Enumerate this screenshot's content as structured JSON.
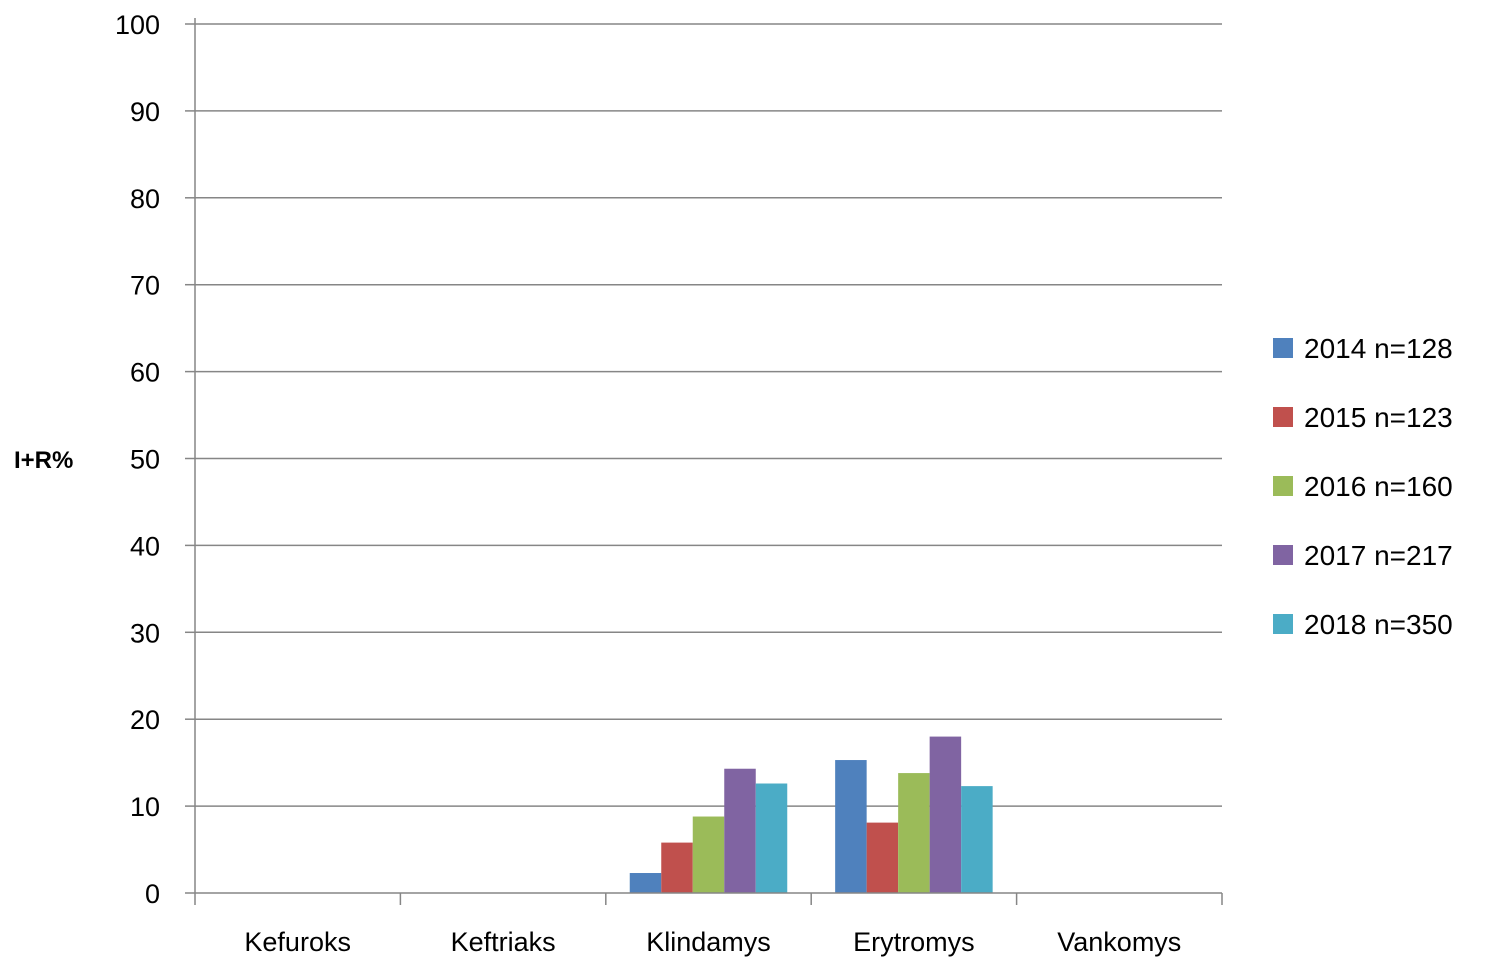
{
  "chart_data": {
    "type": "bar",
    "title": "",
    "xlabel": "",
    "ylabel": "I+R%",
    "ylim": [
      0,
      100
    ],
    "yticks": [
      0,
      10,
      20,
      30,
      40,
      50,
      60,
      70,
      80,
      90,
      100
    ],
    "grid": true,
    "legend_position": "right",
    "categories": [
      "Kefuroks",
      "Keftriaks",
      "Klindamys",
      "Erytromys",
      "Vankomys"
    ],
    "series": [
      {
        "name": "2014 n=128",
        "color": "#4F81BD",
        "values": [
          0,
          0,
          2.3,
          15.3,
          0
        ]
      },
      {
        "name": "2015 n=123",
        "color": "#C0504D",
        "values": [
          0,
          0,
          5.8,
          8.1,
          0
        ]
      },
      {
        "name": "2016 n=160",
        "color": "#9BBB59",
        "values": [
          0,
          0,
          8.8,
          13.8,
          0
        ]
      },
      {
        "name": "2017 n=217",
        "color": "#8064A2",
        "values": [
          0,
          0,
          14.3,
          18.0,
          0
        ]
      },
      {
        "name": "2018 n=350",
        "color": "#4BACC6",
        "values": [
          0,
          0,
          12.6,
          12.3,
          0
        ]
      }
    ]
  }
}
